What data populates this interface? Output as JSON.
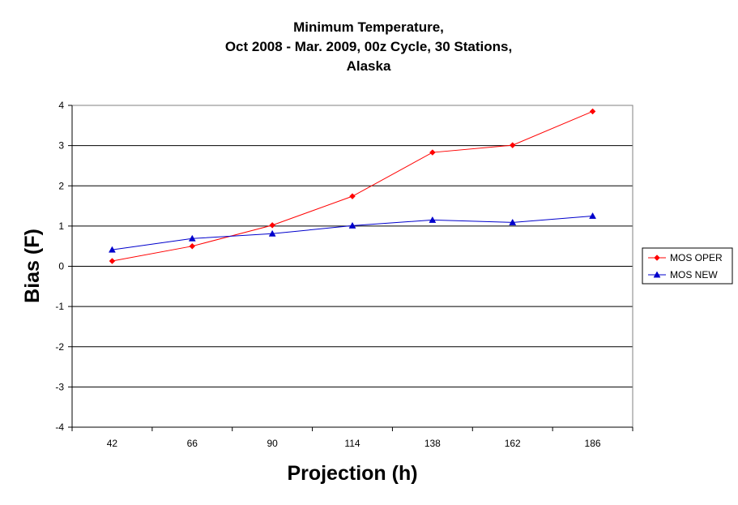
{
  "chart_data": {
    "type": "line",
    "title_lines": [
      "Minimum Temperature,",
      "Oct 2008 - Mar. 2009, 00z Cycle, 30 Stations,",
      "Alaska"
    ],
    "xlabel": "Projection (h)",
    "ylabel": "Bias (F)",
    "categories": [
      "42",
      "66",
      "90",
      "114",
      "138",
      "162",
      "186"
    ],
    "ylim": [
      -4,
      4
    ],
    "yticks": [
      "4",
      "3",
      "2",
      "1",
      "0",
      "-1",
      "-2",
      "-3",
      "-4"
    ],
    "grid": "horizontal",
    "legend_position": "right",
    "series": [
      {
        "name": "MOS OPER",
        "color": "#ff0000",
        "marker": "diamond",
        "values": [
          0.13,
          0.5,
          1.02,
          1.74,
          2.83,
          3.01,
          3.85
        ]
      },
      {
        "name": "MOS NEW",
        "color": "#0000cc",
        "marker": "triangle",
        "values": [
          0.41,
          0.69,
          0.81,
          1.01,
          1.15,
          1.09,
          1.25
        ]
      }
    ]
  }
}
